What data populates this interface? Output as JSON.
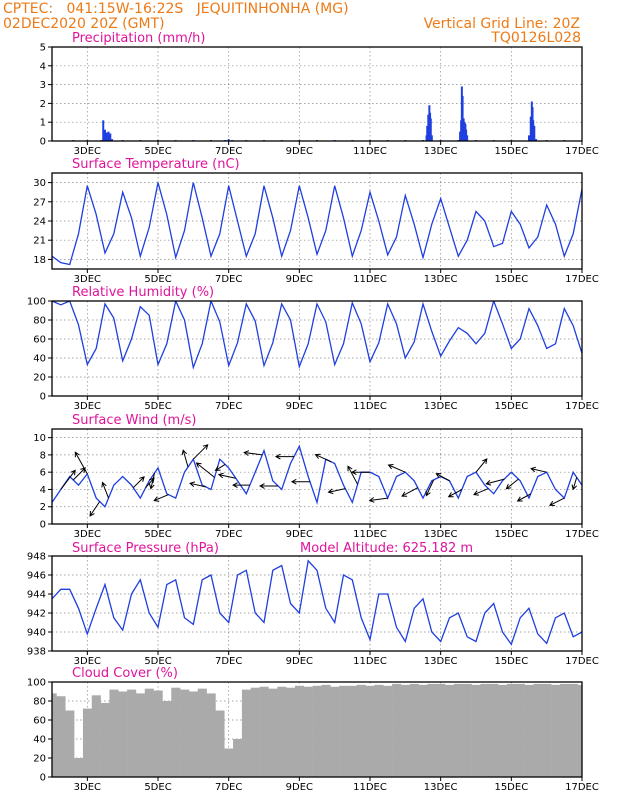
{
  "header": {
    "line1_left": "CPTEC:   041:15W-16:22S   JEQUITINHONHA (MG)",
    "line2_left": "02DEC2020 20Z (GMT)",
    "line1_right": "Vertical Grid Line: 20Z",
    "line2_right": "TQ0126L028"
  },
  "colors": {
    "header": "#ee7a16",
    "title": "#e0149a",
    "series": "#1f3fe0",
    "cloud": "#aaaaaa"
  },
  "x_axis": {
    "day_ticks": [
      3,
      5,
      7,
      9,
      11,
      13,
      15,
      17
    ],
    "day_labels": [
      "3DEC",
      "5DEC",
      "7DEC",
      "9DEC",
      "11DEC",
      "13DEC",
      "15DEC",
      "17DEC"
    ],
    "range_days": [
      2.0,
      17.0
    ]
  },
  "chart_data": [
    {
      "id": "precip",
      "type": "bar",
      "title": "Precipitation (mm/h)",
      "ylim": [
        0,
        5
      ],
      "yticks": [
        0,
        1,
        2,
        3,
        4,
        5
      ],
      "grid": true,
      "x": [
        2.6,
        3.0,
        3.4,
        3.45,
        3.5,
        3.55,
        3.6,
        3.65,
        3.7,
        4.0,
        4.5,
        5.0,
        5.5,
        6.0,
        6.5,
        6.9,
        7.0,
        7.1,
        7.5,
        8.0,
        8.5,
        9.0,
        9.5,
        10.0,
        10.5,
        11.0,
        11.5,
        12.0,
        12.5,
        12.6,
        12.62,
        12.65,
        12.68,
        12.7,
        12.72,
        12.75,
        13.0,
        13.5,
        13.55,
        13.58,
        13.6,
        13.62,
        13.65,
        13.68,
        13.7,
        13.72,
        13.75,
        14.0,
        14.5,
        15.0,
        15.5,
        15.55,
        15.58,
        15.6,
        15.62,
        15.65,
        15.7,
        16.0,
        16.5
      ],
      "values": [
        0.05,
        0.05,
        0.05,
        1.1,
        0.6,
        0.45,
        0.5,
        0.4,
        0.1,
        0.05,
        0.05,
        0.05,
        0.05,
        0.05,
        0.05,
        0.05,
        0.1,
        0.05,
        0.05,
        0.05,
        0.05,
        0.05,
        0.05,
        0.05,
        0.05,
        0.05,
        0.05,
        0.05,
        0.05,
        0.3,
        0.8,
        1.4,
        1.9,
        1.5,
        1.2,
        0.3,
        0.05,
        0.05,
        0.5,
        1.1,
        2.9,
        2.4,
        1.2,
        1.0,
        0.9,
        0.6,
        0.3,
        0.05,
        0.05,
        0.05,
        0.3,
        1.3,
        2.1,
        1.8,
        1.1,
        0.8,
        0.1,
        0.05,
        0.05
      ]
    },
    {
      "id": "temp",
      "type": "line",
      "title": "Surface Temperature (nC)",
      "ylim": [
        16.5,
        31.5
      ],
      "yticks": [
        18,
        21,
        24,
        27,
        30
      ],
      "grid": true,
      "x": [
        2.0,
        2.25,
        2.5,
        2.75,
        3.0,
        3.25,
        3.5,
        3.75,
        4.0,
        4.25,
        4.5,
        4.75,
        5.0,
        5.25,
        5.5,
        5.75,
        6.0,
        6.25,
        6.5,
        6.75,
        7.0,
        7.25,
        7.5,
        7.75,
        8.0,
        8.25,
        8.5,
        8.75,
        9.0,
        9.25,
        9.5,
        9.75,
        10.0,
        10.25,
        10.5,
        10.75,
        11.0,
        11.25,
        11.5,
        11.75,
        12.0,
        12.25,
        12.5,
        12.75,
        13.0,
        13.25,
        13.5,
        13.75,
        14.0,
        14.25,
        14.5,
        14.75,
        15.0,
        15.25,
        15.5,
        15.75,
        16.0,
        16.25,
        16.5,
        16.75,
        17.0
      ],
      "values": [
        18.5,
        17.5,
        17.2,
        22.0,
        29.5,
        25.0,
        19.0,
        22.0,
        28.5,
        24.5,
        18.5,
        23.0,
        30.0,
        25.0,
        18.3,
        22.5,
        30.0,
        24.5,
        18.5,
        22.0,
        29.5,
        24.0,
        18.5,
        22.0,
        29.5,
        24.5,
        18.5,
        22.5,
        29.5,
        24.5,
        18.8,
        22.5,
        29.5,
        24.5,
        18.5,
        22.5,
        28.5,
        24.0,
        18.7,
        21.5,
        28.0,
        23.5,
        18.3,
        23.5,
        27.5,
        23.0,
        18.5,
        21.0,
        25.5,
        24.0,
        20.0,
        20.5,
        25.5,
        23.5,
        19.8,
        21.5,
        26.5,
        23.5,
        18.5,
        22.0,
        29.0
      ]
    },
    {
      "id": "rh",
      "type": "line",
      "title": "Relative Humidity (%)",
      "ylim": [
        0,
        100
      ],
      "yticks": [
        0,
        20,
        40,
        60,
        80,
        100
      ],
      "grid": true,
      "x": [
        2.0,
        2.25,
        2.5,
        2.75,
        3.0,
        3.25,
        3.5,
        3.75,
        4.0,
        4.25,
        4.5,
        4.75,
        5.0,
        5.25,
        5.5,
        5.75,
        6.0,
        6.25,
        6.5,
        6.75,
        7.0,
        7.25,
        7.5,
        7.75,
        8.0,
        8.25,
        8.5,
        8.75,
        9.0,
        9.25,
        9.5,
        9.75,
        10.0,
        10.25,
        10.5,
        10.75,
        11.0,
        11.25,
        11.5,
        11.75,
        12.0,
        12.25,
        12.5,
        12.75,
        13.0,
        13.25,
        13.5,
        13.75,
        14.0,
        14.25,
        14.5,
        14.75,
        15.0,
        15.25,
        15.5,
        15.75,
        16.0,
        16.25,
        16.5,
        16.75,
        17.0
      ],
      "values": [
        100,
        96,
        100,
        75,
        33,
        50,
        97,
        82,
        37,
        60,
        94,
        85,
        33,
        55,
        100,
        80,
        30,
        55,
        100,
        78,
        32,
        56,
        97,
        79,
        32,
        56,
        97,
        80,
        31,
        55,
        97,
        78,
        33,
        55,
        98,
        76,
        36,
        56,
        97,
        76,
        40,
        57,
        97,
        68,
        42,
        58,
        72,
        66,
        55,
        66,
        100,
        76,
        50,
        60,
        92,
        74,
        50,
        55,
        92,
        74,
        45
      ]
    },
    {
      "id": "wind",
      "type": "line",
      "title": "Surface Wind (m/s)",
      "ylim": [
        0,
        11
      ],
      "yticks": [
        0,
        2,
        4,
        6,
        8,
        10
      ],
      "grid": true,
      "x": [
        2.0,
        2.25,
        2.5,
        2.75,
        3.0,
        3.25,
        3.5,
        3.75,
        4.0,
        4.25,
        4.5,
        4.75,
        5.0,
        5.25,
        5.5,
        5.75,
        6.0,
        6.25,
        6.5,
        6.75,
        7.0,
        7.25,
        7.5,
        7.75,
        8.0,
        8.25,
        8.5,
        8.75,
        9.0,
        9.25,
        9.5,
        9.75,
        10.0,
        10.25,
        10.5,
        10.75,
        11.0,
        11.25,
        11.5,
        11.75,
        12.0,
        12.25,
        12.5,
        12.75,
        13.0,
        13.25,
        13.5,
        13.75,
        14.0,
        14.25,
        14.5,
        14.75,
        15.0,
        15.25,
        15.5,
        15.75,
        16.0,
        16.25,
        16.5,
        16.75,
        17.0
      ],
      "values": [
        2.5,
        4.0,
        5.5,
        4.5,
        5.8,
        3.0,
        2.0,
        4.5,
        5.5,
        4.5,
        3.0,
        5.0,
        6.5,
        3.5,
        3.0,
        6.0,
        7.5,
        4.5,
        4.0,
        7.5,
        6.5,
        5.0,
        3.5,
        6.0,
        8.5,
        5.0,
        4.0,
        7.0,
        9.0,
        5.5,
        2.5,
        7.5,
        7.0,
        4.5,
        2.5,
        6.0,
        6.0,
        5.5,
        3.0,
        5.5,
        6.0,
        5.0,
        3.0,
        5.0,
        5.5,
        5.0,
        3.0,
        5.5,
        6.0,
        4.5,
        3.5,
        5.0,
        6.0,
        5.0,
        3.0,
        5.5,
        6.0,
        4.0,
        3.0,
        6.0,
        4.5
      ],
      "vectors": {
        "x": [
          2.25,
          2.6,
          3.0,
          3.35,
          3.6,
          4.3,
          4.65,
          4.9,
          5.3,
          5.85,
          6.0,
          6.35,
          6.6,
          6.9,
          7.2,
          7.6,
          7.95,
          8.4,
          8.85,
          9.3,
          9.9,
          10.3,
          10.65,
          11.0,
          11.5,
          12.0,
          12.35,
          12.8,
          13.25,
          13.6,
          14.0,
          14.35,
          14.8,
          15.2,
          15.55,
          16.0,
          16.5,
          16.85
        ],
        "u": [
          1.2,
          1.0,
          -1.0,
          -0.8,
          -0.5,
          0.9,
          0.7,
          -0.3,
          -1.2,
          -0.4,
          1.2,
          -1.3,
          -1.5,
          -0.8,
          -1.4,
          -1.4,
          -1.5,
          -1.5,
          -1.5,
          -1.5,
          -1.3,
          -1.4,
          -0.8,
          -1.5,
          -1.5,
          -1.4,
          -1.3,
          -0.6,
          -1.1,
          -1.1,
          0.9,
          -1.2,
          -1.5,
          -1.0,
          -1.1,
          -1.3,
          -1.2,
          -0.3
        ],
        "v": [
          1.6,
          1.0,
          1.8,
          -1.2,
          1.3,
          0.9,
          0.8,
          -1.3,
          -0.5,
          1.4,
          1.2,
          0.3,
          1.2,
          -0.5,
          0.3,
          0.0,
          0.2,
          0.0,
          0.0,
          0.0,
          0.6,
          -0.3,
          1.5,
          0.0,
          -0.2,
          0.6,
          -0.7,
          -1.3,
          0.6,
          -0.6,
          1.1,
          -0.5,
          -0.4,
          -0.8,
          -0.6,
          0.3,
          -0.6,
          -1.0
        ]
      }
    },
    {
      "id": "pressure",
      "type": "line",
      "title": "Surface Pressure (hPa)",
      "annotation": "Model Altitude: 625.182 m",
      "ylim": [
        938,
        948
      ],
      "yticks": [
        938,
        940,
        942,
        944,
        946,
        948
      ],
      "grid": true,
      "x": [
        2.0,
        2.25,
        2.5,
        2.75,
        3.0,
        3.25,
        3.5,
        3.75,
        4.0,
        4.25,
        4.5,
        4.75,
        5.0,
        5.25,
        5.5,
        5.75,
        6.0,
        6.25,
        6.5,
        6.75,
        7.0,
        7.25,
        7.5,
        7.75,
        8.0,
        8.25,
        8.5,
        8.75,
        9.0,
        9.25,
        9.5,
        9.75,
        10.0,
        10.25,
        10.5,
        10.75,
        11.0,
        11.25,
        11.5,
        11.75,
        12.0,
        12.25,
        12.5,
        12.75,
        13.0,
        13.25,
        13.5,
        13.75,
        14.0,
        14.25,
        14.5,
        14.75,
        15.0,
        15.25,
        15.5,
        15.75,
        16.0,
        16.25,
        16.5,
        16.75,
        17.0
      ],
      "values": [
        943.5,
        944.5,
        944.5,
        942.5,
        939.8,
        942.5,
        945.0,
        941.5,
        940.2,
        944.0,
        945.5,
        942.0,
        940.5,
        945.0,
        945.5,
        941.5,
        940.8,
        945.5,
        946.0,
        942.0,
        941.0,
        946.0,
        946.5,
        942.0,
        941.0,
        946.5,
        947.0,
        943.0,
        942.0,
        947.5,
        946.5,
        942.5,
        941.0,
        946.0,
        945.5,
        941.5,
        939.2,
        944.0,
        944.0,
        940.5,
        939.0,
        942.5,
        943.5,
        940.0,
        939.0,
        941.5,
        942.0,
        939.5,
        939.0,
        942.0,
        943.0,
        940.0,
        938.7,
        941.5,
        942.5,
        939.8,
        938.8,
        941.5,
        942.0,
        939.5,
        940.0
      ]
    },
    {
      "id": "cloud",
      "type": "area",
      "title": "Cloud Cover (%)",
      "ylim": [
        0,
        100
      ],
      "yticks": [
        0,
        20,
        40,
        60,
        80,
        100
      ],
      "grid": true,
      "x": [
        2.0,
        2.25,
        2.5,
        2.75,
        3.0,
        3.25,
        3.5,
        3.75,
        4.0,
        4.25,
        4.5,
        4.75,
        5.0,
        5.25,
        5.5,
        5.75,
        6.0,
        6.25,
        6.5,
        6.75,
        7.0,
        7.25,
        7.5,
        7.75,
        8.0,
        8.25,
        8.5,
        8.75,
        9.0,
        9.25,
        9.5,
        9.75,
        10.0,
        10.25,
        10.5,
        10.75,
        11.0,
        11.25,
        11.5,
        11.75,
        12.0,
        12.25,
        12.5,
        12.75,
        13.0,
        13.25,
        13.5,
        13.75,
        14.0,
        14.25,
        14.5,
        14.75,
        15.0,
        15.25,
        15.5,
        15.75,
        16.0,
        16.25,
        16.5,
        16.75,
        17.0
      ],
      "values": [
        88,
        85,
        70,
        20,
        72,
        86,
        78,
        92,
        90,
        92,
        88,
        93,
        91,
        80,
        94,
        92,
        90,
        93,
        88,
        70,
        30,
        40,
        92,
        94,
        95,
        93,
        95,
        94,
        96,
        95,
        96,
        97,
        95,
        96,
        96,
        97,
        96,
        97,
        96,
        98,
        97,
        98,
        97,
        98,
        98,
        97,
        98,
        98,
        97,
        98,
        98,
        97,
        98,
        98,
        97,
        98,
        98,
        97,
        98,
        98,
        97
      ]
    }
  ]
}
